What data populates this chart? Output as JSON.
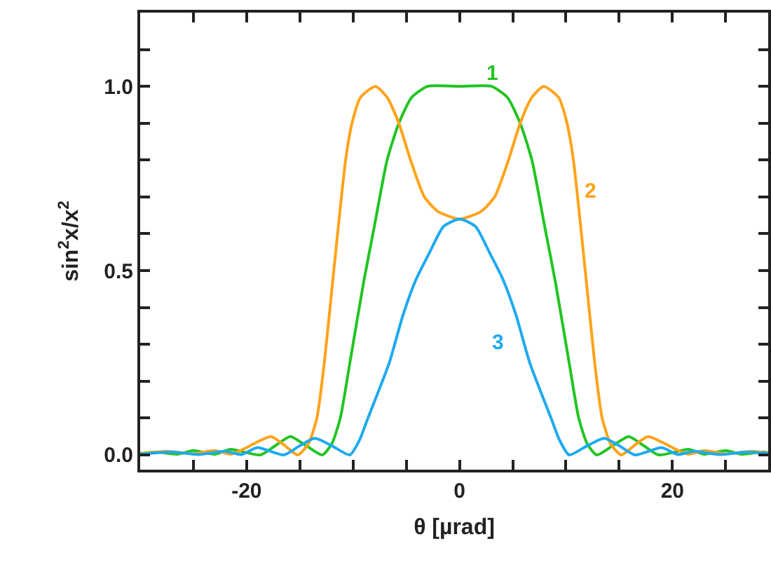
{
  "chart_data": {
    "type": "line",
    "xlabel": "θ [µrad]",
    "ylabel": "sin$^{2}$x/x$^{2}$",
    "xlim": [
      -30,
      29
    ],
    "ylim": [
      -0.04,
      1.2
    ],
    "xticks": [
      {
        "value": -25,
        "label": null
      },
      {
        "value": -20,
        "label": "-20"
      },
      {
        "value": -15,
        "label": null
      },
      {
        "value": -10,
        "label": null
      },
      {
        "value": -5,
        "label": null
      },
      {
        "value": 0,
        "label": "0"
      },
      {
        "value": 5,
        "label": null
      },
      {
        "value": 10,
        "label": null
      },
      {
        "value": 15,
        "label": null
      },
      {
        "value": 20,
        "label": "20"
      },
      {
        "value": 25,
        "label": null
      }
    ],
    "yticks": [
      {
        "value": 0,
        "label": "0.0"
      },
      {
        "value": 0.1,
        "label": null
      },
      {
        "value": 0.2,
        "label": null
      },
      {
        "value": 0.3,
        "label": null
      },
      {
        "value": 0.4,
        "label": null
      },
      {
        "value": 0.5,
        "label": "0.5"
      },
      {
        "value": 0.6,
        "label": null
      },
      {
        "value": 0.7,
        "label": null
      },
      {
        "value": 0.8,
        "label": null
      },
      {
        "value": 0.9,
        "label": null
      },
      {
        "value": 1,
        "label": "1.0"
      },
      {
        "value": 1.1,
        "label": null
      }
    ],
    "grid": false,
    "legend": false,
    "marker": "none",
    "line_style": "solid",
    "series": [
      {
        "name": "1",
        "color": "#22c422",
        "x": [
          -30,
          -28.5,
          -26.5,
          -25,
          -23,
          -21.5,
          -18.7,
          -17.3,
          -15.9,
          -14.4,
          -12.9,
          -12,
          -11.2,
          -10.3,
          -9,
          -8,
          -6.8,
          -5.7,
          -4.5,
          -3,
          0,
          3,
          4.5,
          5.7,
          6.8,
          8,
          9,
          10.3,
          11.2,
          12,
          12.9,
          14.4,
          15.9,
          17.3,
          18.7,
          21.5,
          23,
          25,
          26.5,
          28.5,
          29
        ],
        "values": [
          0.004,
          0.008,
          0.002,
          0.012,
          0.002,
          0.015,
          0,
          0.025,
          0.05,
          0.025,
          0,
          0.03,
          0.1,
          0.25,
          0.47,
          0.62,
          0.8,
          0.9,
          0.97,
          1,
          1,
          1,
          0.97,
          0.9,
          0.8,
          0.62,
          0.47,
          0.25,
          0.1,
          0.03,
          0,
          0.025,
          0.05,
          0.025,
          0,
          0.015,
          0.002,
          0.012,
          0.002,
          0.008,
          0.006
        ]
      },
      {
        "name": "2",
        "color": "#ffa31a",
        "x": [
          -30,
          -27.5,
          -25,
          -23,
          -21.5,
          -20,
          -19,
          -17.7,
          -16.4,
          -15.2,
          -14.2,
          -13.4,
          -12.7,
          -11.9,
          -10.7,
          -10.1,
          -9.3,
          -7.9,
          -6.8,
          -5.7,
          -4.6,
          -3.3,
          -2,
          0,
          2,
          3.3,
          4.6,
          5.7,
          6.8,
          7.9,
          9.3,
          10.1,
          10.7,
          11.9,
          12.7,
          13.4,
          14.2,
          15.2,
          16.4,
          17.7,
          19,
          20,
          21.5,
          23,
          25,
          27.5,
          29
        ],
        "values": [
          0.003,
          0.01,
          0.003,
          0.012,
          0.002,
          0.02,
          0.035,
          0.05,
          0.025,
          0,
          0.03,
          0.1,
          0.25,
          0.475,
          0.8,
          0.9,
          0.97,
          1,
          0.97,
          0.9,
          0.8,
          0.7,
          0.66,
          0.64,
          0.66,
          0.7,
          0.8,
          0.9,
          0.97,
          1,
          0.97,
          0.9,
          0.8,
          0.475,
          0.25,
          0.1,
          0.03,
          0,
          0.025,
          0.05,
          0.035,
          0.02,
          0.002,
          0.012,
          0.003,
          0.01,
          0.005
        ]
      },
      {
        "name": "3",
        "color": "#1eaaf0",
        "x": [
          -30,
          -27,
          -24.5,
          -22,
          -20.5,
          -19,
          -16.5,
          -15,
          -13.6,
          -12,
          -10.3,
          -9.4,
          -8.6,
          -6.6,
          -5.3,
          -4.1,
          -2.8,
          -1.5,
          0,
          1.5,
          2.8,
          4.1,
          5.3,
          6.6,
          8.6,
          9.4,
          10.3,
          12,
          13.6,
          15,
          16.5,
          19,
          20.5,
          22,
          24.5,
          27,
          29
        ],
        "values": [
          0.002,
          0.008,
          0.001,
          0.01,
          0.001,
          0.02,
          0,
          0.025,
          0.045,
          0.025,
          0,
          0.04,
          0.1,
          0.25,
          0.38,
          0.475,
          0.55,
          0.62,
          0.64,
          0.62,
          0.55,
          0.475,
          0.38,
          0.25,
          0.1,
          0.04,
          0,
          0.025,
          0.045,
          0.025,
          0,
          0.02,
          0.001,
          0.01,
          0.001,
          0.008,
          0.004
        ]
      }
    ]
  }
}
